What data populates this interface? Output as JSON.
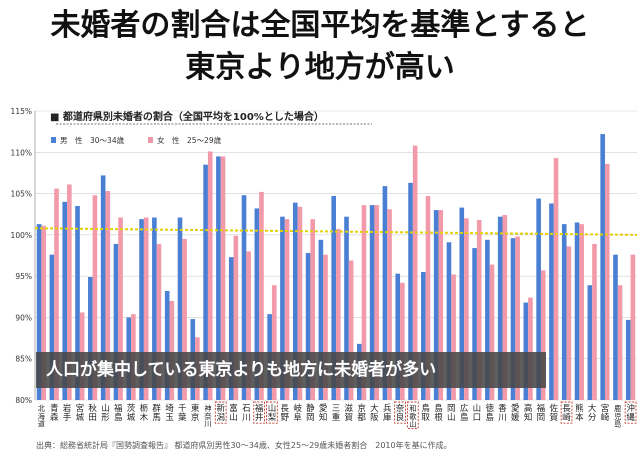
{
  "headline": [
    "未婚者の割合は全国平均を基準とすると",
    "東京より地方が高い"
  ],
  "callout": "人口が集中している東京よりも地方に未婚者が多い",
  "source": "出典：総務省統計局『国勢調査報告』 都道府県別男性30～34歳、女性25～29歳未婚者割合　2010年を基に作成。",
  "colors": {
    "male": "#4a7fd4",
    "female": "#f29aaa",
    "average": "#e3d000",
    "highlight": "#c0392b"
  },
  "chart_data": {
    "type": "bar",
    "title": "■ 都道府県別未婚者の割合（全国平均を100%とした場合）",
    "ylim": [
      80,
      115
    ],
    "yticks": [
      "80%",
      "85%",
      "90%",
      "95%",
      "100%",
      "105%",
      "110%",
      "115%"
    ],
    "grid": true,
    "legend_position": "top-left",
    "average_line": {
      "start": 100.8,
      "end": 100.0
    },
    "highlighted": [
      "新潟",
      "福井",
      "山梨",
      "奈良",
      "和歌山",
      "長崎",
      "沖縄"
    ],
    "categories": [
      "北海道",
      "青森",
      "岩手",
      "宮城",
      "秋田",
      "山形",
      "福島",
      "茨城",
      "栃木",
      "群馬",
      "埼玉",
      "千葉",
      "東京",
      "神奈川",
      "新潟",
      "富山",
      "石川",
      "福井",
      "山梨",
      "長野",
      "岐阜",
      "静岡",
      "愛知",
      "三重",
      "滋賀",
      "京都",
      "大阪",
      "兵庫",
      "奈良",
      "和歌山",
      "鳥取",
      "島根",
      "岡山",
      "広島",
      "山口",
      "徳島",
      "香川",
      "愛媛",
      "高知",
      "福岡",
      "佐賀",
      "長崎",
      "熊本",
      "大分",
      "宮崎",
      "鹿児島",
      "沖縄"
    ],
    "series": [
      {
        "name": "男　性　30～34歳",
        "values": [
          101.3,
          97.6,
          104.0,
          103.5,
          94.9,
          107.2,
          98.9,
          90.0,
          101.9,
          102.1,
          93.2,
          102.1,
          89.8,
          108.5,
          109.5,
          97.3,
          104.8,
          103.2,
          90.4,
          102.2,
          103.9,
          97.8,
          99.4,
          104.7,
          102.2,
          86.8,
          103.6,
          105.9,
          95.3,
          106.3,
          95.5,
          103.0,
          99.1,
          103.3,
          98.4,
          99.4,
          102.2,
          99.6,
          91.8,
          104.4,
          103.8,
          101.3,
          101.5,
          93.9,
          112.2,
          97.6,
          89.7
        ]
      },
      {
        "name": "女　性　25～29歳",
        "values": [
          101.1,
          105.6,
          106.1,
          90.6,
          104.8,
          105.3,
          102.1,
          90.4,
          102.1,
          98.9,
          92.0,
          99.5,
          87.6,
          110.1,
          109.5,
          99.9,
          98.0,
          105.2,
          93.9,
          101.9,
          103.4,
          101.9,
          97.6,
          100.7,
          96.9,
          103.6,
          103.6,
          103.1,
          94.2,
          110.8,
          104.7,
          103.0,
          95.2,
          102.0,
          101.8,
          96.4,
          102.4,
          99.8,
          92.4,
          95.7,
          109.3,
          98.6,
          101.3,
          98.9,
          108.6,
          93.9,
          97.6
        ]
      }
    ]
  }
}
